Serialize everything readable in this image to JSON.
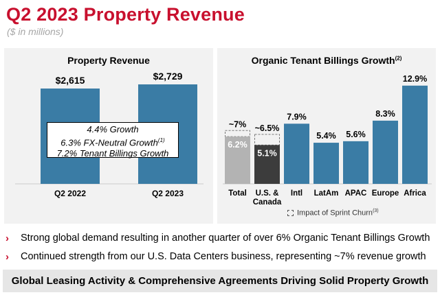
{
  "header": {
    "title": "Q2 2023 Property Revenue",
    "subtitle": "($ in millions)"
  },
  "colors": {
    "brand_red": "#c8102e",
    "bar_blue": "#3a7ca5",
    "bar_gray": "#b3b3b3",
    "bar_dark": "#3c3c3c",
    "panel_bg": "#f2f2f2"
  },
  "chart_data": [
    {
      "type": "bar",
      "title": "Property Revenue",
      "categories": [
        "Q2 2022",
        "Q2 2023"
      ],
      "values": [
        2615,
        2729
      ],
      "labels": [
        "$2,615",
        "$2,729"
      ],
      "annotation": {
        "lines": [
          "4.4% Growth",
          "6.3% FX-Neutral Growth",
          "7.2% Tenant Billings Growth"
        ],
        "footnote_mark": "(1)"
      }
    },
    {
      "type": "bar",
      "title": "Organic Tenant Billings Growth",
      "title_footnote": "(2)",
      "categories": [
        "Total",
        "U.S. & Canada",
        "Intl",
        "LatAm",
        "APAC",
        "Europe",
        "Africa"
      ],
      "category_lines": [
        [
          "Total"
        ],
        [
          "U.S. &",
          "Canada"
        ],
        [
          "Intl"
        ],
        [
          "LatAm"
        ],
        [
          "APAC"
        ],
        [
          "Europe"
        ],
        [
          "Africa"
        ]
      ],
      "values": [
        6.2,
        5.1,
        7.9,
        5.4,
        5.6,
        8.3,
        12.9
      ],
      "labels": [
        "6.2%",
        "5.1%",
        "7.9%",
        "5.4%",
        "5.6%",
        "8.3%",
        "12.9%"
      ],
      "sprint_churn_adjusted": [
        7.0,
        6.5,
        null,
        null,
        null,
        null,
        null
      ],
      "sprint_churn_labels": [
        "~7%",
        "~6.5%",
        null,
        null,
        null,
        null,
        null
      ],
      "legend": {
        "label": "Impact of Sprint Churn",
        "footnote_mark": "(3)"
      },
      "ylim": [
        0,
        14
      ]
    }
  ],
  "bullets": [
    "Strong global demand resulting in another quarter of over 6% Organic Tenant Billings Growth",
    "Continued strength from our U.S. Data Centers business, representing ~7% revenue growth"
  ],
  "footer": {
    "text": "Global Leasing Activity & Comprehensive Agreements Driving Solid Property Growth"
  },
  "icons": {
    "bullet": "chevron-right-icon"
  }
}
